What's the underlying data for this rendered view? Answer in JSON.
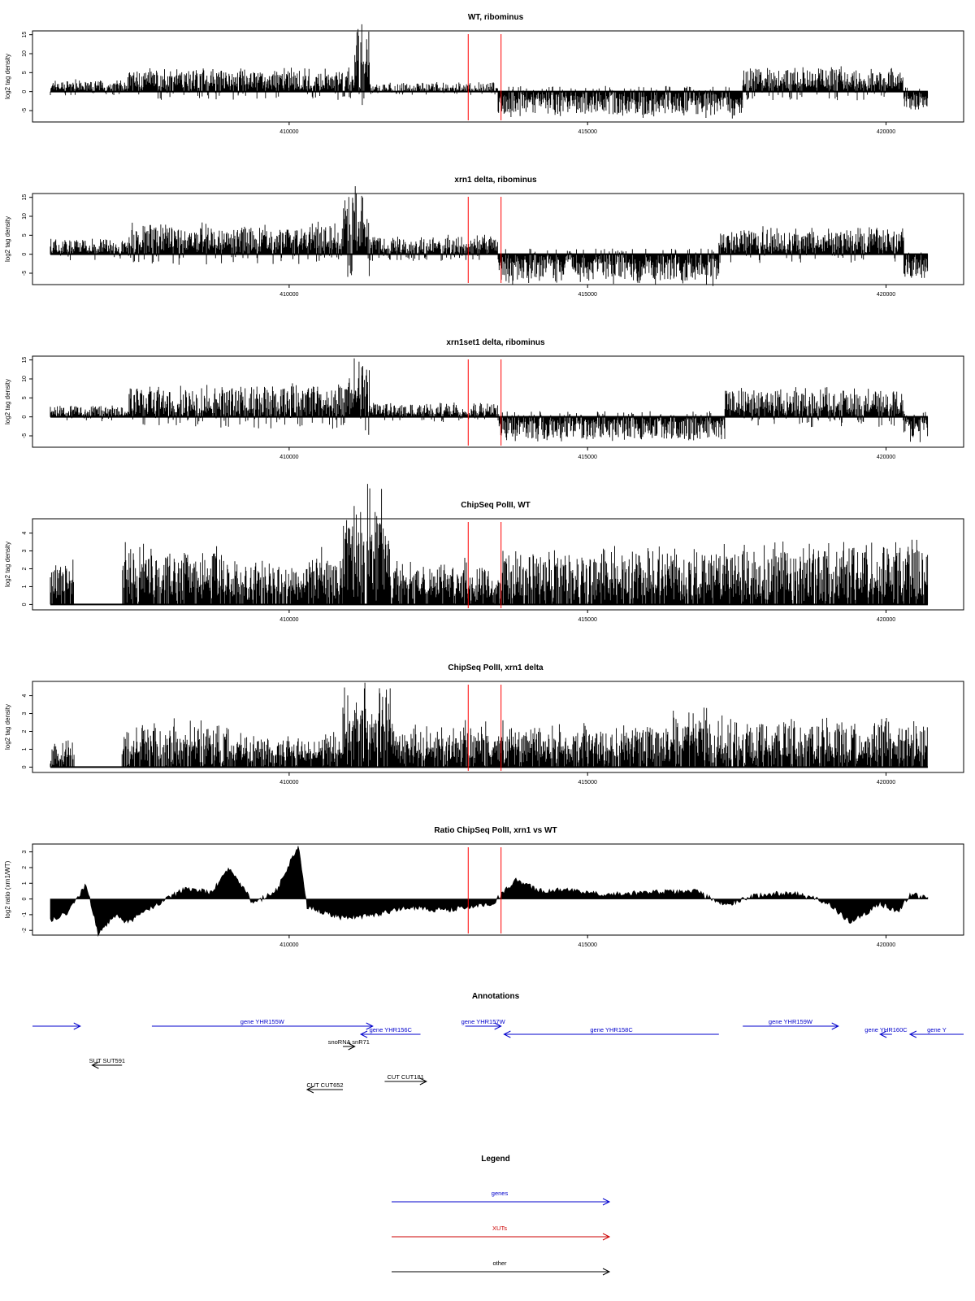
{
  "chart_data": [
    {
      "type": "bar",
      "title": "WT, ribominus",
      "ylabel": "log2 tag density",
      "ylim": [
        -8,
        16
      ],
      "yticks": [
        -5,
        0,
        5,
        10,
        15
      ],
      "xticks": [
        410000,
        415000,
        420000
      ],
      "xlim": [
        405700,
        421300
      ],
      "signal": {
        "segments": [
          {
            "from": 406000,
            "to": 407300,
            "mean": 1.2,
            "amp": 2.5
          },
          {
            "from": 407300,
            "to": 411100,
            "mean": 1.8,
            "amp": 5.5
          },
          {
            "from": 411100,
            "to": 411350,
            "mean": 9.0,
            "amp": 14.5
          },
          {
            "from": 411350,
            "to": 413500,
            "mean": 0.0,
            "amp": 2.5
          },
          {
            "from": 413500,
            "to": 417600,
            "mean": -2.0,
            "amp": -6.0
          },
          {
            "from": 417600,
            "to": 420300,
            "mean": 1.8,
            "amp": 6.0
          },
          {
            "from": 420300,
            "to": 420700,
            "mean": -2.0,
            "amp": -5.0
          }
        ]
      }
    },
    {
      "type": "bar",
      "title": "xrn1 delta, ribominus",
      "ylabel": "log2 tag density",
      "ylim": [
        -8,
        16
      ],
      "yticks": [
        -5,
        0,
        5,
        10,
        15
      ],
      "xticks": [
        410000,
        415000,
        420000
      ],
      "xlim": [
        405700,
        421300
      ],
      "signal": {
        "segments": [
          {
            "from": 406000,
            "to": 407300,
            "mean": 0.8,
            "amp": 4.0
          },
          {
            "from": 407300,
            "to": 410900,
            "mean": 3.0,
            "amp": 7.0
          },
          {
            "from": 410900,
            "to": 411350,
            "mean": 8.0,
            "amp": 15.0
          },
          {
            "from": 411350,
            "to": 413500,
            "mean": 1.5,
            "amp": 4.5
          },
          {
            "from": 413500,
            "to": 417200,
            "mean": -2.5,
            "amp": -7.0
          },
          {
            "from": 417200,
            "to": 420300,
            "mean": 2.5,
            "amp": 6.0
          },
          {
            "from": 420300,
            "to": 420700,
            "mean": -3.0,
            "amp": -6.0
          }
        ]
      }
    },
    {
      "type": "bar",
      "title": "xrn1set1 delta, ribominus",
      "ylabel": "log2 tag density",
      "ylim": [
        -8,
        16
      ],
      "yticks": [
        -5,
        0,
        5,
        10,
        15
      ],
      "xticks": [
        410000,
        415000,
        420000
      ],
      "xlim": [
        405700,
        421300
      ],
      "signal": {
        "segments": [
          {
            "from": 406000,
            "to": 407300,
            "mean": 0.5,
            "amp": 3.0
          },
          {
            "from": 407300,
            "to": 411000,
            "mean": 2.0,
            "amp": 8.0
          },
          {
            "from": 411000,
            "to": 411350,
            "mean": 7.0,
            "amp": 12.5
          },
          {
            "from": 411350,
            "to": 413500,
            "mean": 1.0,
            "amp": 3.5
          },
          {
            "from": 413500,
            "to": 417300,
            "mean": -1.5,
            "amp": -6.0
          },
          {
            "from": 417300,
            "to": 420300,
            "mean": 2.0,
            "amp": 7.0
          },
          {
            "from": 420300,
            "to": 420700,
            "mean": -2.5,
            "amp": -5.0
          }
        ]
      }
    },
    {
      "type": "bar",
      "title": "ChipSeq PolII, WT",
      "ylabel": "log2 tag density",
      "ylim": [
        -0.3,
        4.8
      ],
      "yticks": [
        0,
        1,
        2,
        3,
        4
      ],
      "xticks": [
        410000,
        415000,
        420000
      ],
      "xlim": [
        405700,
        421300
      ],
      "signal": {
        "segments": [
          {
            "from": 406000,
            "to": 406400,
            "mean": 1.0,
            "amp": 2.0
          },
          {
            "from": 407200,
            "to": 409000,
            "mean": 1.0,
            "amp": 3.0
          },
          {
            "from": 409000,
            "to": 410300,
            "mean": 1.0,
            "amp": 2.0
          },
          {
            "from": 410300,
            "to": 410900,
            "mean": 1.2,
            "amp": 2.5
          },
          {
            "from": 410900,
            "to": 411700,
            "mean": 3.5,
            "amp": 4.7
          },
          {
            "from": 411700,
            "to": 413500,
            "mean": 1.0,
            "amp": 2.0
          },
          {
            "from": 413500,
            "to": 417500,
            "mean": 1.2,
            "amp": 2.8
          },
          {
            "from": 417500,
            "to": 420700,
            "mean": 1.0,
            "amp": 3.3
          }
        ]
      }
    },
    {
      "type": "bar",
      "title": "ChipSeq PolII, xrn1 delta",
      "ylabel": "log2 tag density",
      "ylim": [
        -0.3,
        4.8
      ],
      "yticks": [
        0,
        1,
        2,
        3,
        4
      ],
      "xticks": [
        410000,
        415000,
        420000
      ],
      "xlim": [
        405700,
        421300
      ],
      "signal": {
        "segments": [
          {
            "from": 406000,
            "to": 406400,
            "mean": 0.5,
            "amp": 1.5
          },
          {
            "from": 407200,
            "to": 409000,
            "mean": 1.0,
            "amp": 2.2
          },
          {
            "from": 409000,
            "to": 410900,
            "mean": 0.8,
            "amp": 1.5
          },
          {
            "from": 410900,
            "to": 411700,
            "mean": 2.5,
            "amp": 3.3
          },
          {
            "from": 411700,
            "to": 416400,
            "mean": 1.0,
            "amp": 2.0
          },
          {
            "from": 416400,
            "to": 417100,
            "mean": 1.8,
            "amp": 2.5
          },
          {
            "from": 417100,
            "to": 420700,
            "mean": 0.8,
            "amp": 2.5
          }
        ]
      }
    },
    {
      "type": "area",
      "title": "Ratio ChipSeq PolII, xrn1 vs WT",
      "ylabel": "log2 ratio (xrn1/WT)",
      "ylim": [
        -2.3,
        3.5
      ],
      "yticks": [
        -2,
        -1,
        0,
        1,
        2,
        3
      ],
      "xticks": [
        410000,
        415000,
        420000
      ],
      "xlim": [
        405700,
        421300
      ],
      "signal": {
        "points": [
          [
            406000,
            -1.4
          ],
          [
            406300,
            -0.8
          ],
          [
            406600,
            0.9
          ],
          [
            406800,
            -2.2
          ],
          [
            407100,
            -1.0
          ],
          [
            407300,
            -1.5
          ],
          [
            407800,
            -0.3
          ],
          [
            408300,
            0.7
          ],
          [
            408700,
            0.4
          ],
          [
            409000,
            2.0
          ],
          [
            409400,
            -0.3
          ],
          [
            409800,
            0.6
          ],
          [
            410150,
            3.4
          ],
          [
            410300,
            -0.5
          ],
          [
            410900,
            -1.2
          ],
          [
            411500,
            -1.0
          ],
          [
            412000,
            -0.5
          ],
          [
            412500,
            -0.7
          ],
          [
            412900,
            -0.6
          ],
          [
            413400,
            -0.3
          ],
          [
            413800,
            1.2
          ],
          [
            414200,
            0.5
          ],
          [
            414700,
            0.6
          ],
          [
            415300,
            0.3
          ],
          [
            416000,
            0.4
          ],
          [
            416800,
            0.5
          ],
          [
            417300,
            -0.4
          ],
          [
            417800,
            0.2
          ],
          [
            418400,
            0.4
          ],
          [
            419000,
            -0.2
          ],
          [
            419400,
            -1.5
          ],
          [
            419900,
            -0.3
          ],
          [
            420200,
            -0.8
          ],
          [
            420400,
            0.3
          ],
          [
            420700,
            0.1
          ]
        ]
      }
    }
  ],
  "red_lines": [
    413000,
    413550
  ],
  "panel_axis_labels": {
    "ticks_x": [
      "410000",
      "415000",
      "420000"
    ]
  },
  "annotations": {
    "title": "Annotations",
    "genes_color": "#0000cc",
    "other_color": "#000000",
    "features": [
      {
        "label": "",
        "from": 405700,
        "to": 406500,
        "dir": "+",
        "kind": "gene",
        "row": 0
      },
      {
        "label": "gene YHR155W",
        "from": 407700,
        "to": 411400,
        "dir": "+",
        "kind": "gene",
        "row": 0
      },
      {
        "label": "gene YHR156C",
        "from": 411200,
        "to": 412200,
        "dir": "-",
        "kind": "gene",
        "row": 1
      },
      {
        "label": "gene YHR157W",
        "from": 412950,
        "to": 413550,
        "dir": "+",
        "kind": "gene",
        "row": 0
      },
      {
        "label": "gene YHR158C",
        "from": 413600,
        "to": 417200,
        "dir": "-",
        "kind": "gene",
        "row": 1
      },
      {
        "label": "gene YHR159W",
        "from": 417600,
        "to": 419200,
        "dir": "+",
        "kind": "gene",
        "row": 0
      },
      {
        "label": "gene YHR160C",
        "from": 419900,
        "to": 420100,
        "dir": "-",
        "kind": "gene",
        "row": 1
      },
      {
        "label": "gene Y",
        "from": 420400,
        "to": 421300,
        "dir": "-",
        "kind": "gene",
        "row": 1
      },
      {
        "label": "snoRNA snR71",
        "from": 410900,
        "to": 411100,
        "dir": "+",
        "kind": "other",
        "row": 2
      },
      {
        "label": "SUT SUT591",
        "from": 406700,
        "to": 407200,
        "dir": "-",
        "kind": "other",
        "row": 3
      },
      {
        "label": "CUT CUT181",
        "from": 411600,
        "to": 412300,
        "dir": "+",
        "kind": "other",
        "row": 4
      },
      {
        "label": "CUT CUT652",
        "from": 410300,
        "to": 410900,
        "dir": "-",
        "kind": "other",
        "row": 5
      }
    ]
  },
  "legend": {
    "title": "Legend",
    "items": [
      {
        "label": "genes",
        "color": "#0000cc"
      },
      {
        "label": "XUTs",
        "color": "#cc0000"
      },
      {
        "label": "other",
        "color": "#000000"
      }
    ]
  }
}
